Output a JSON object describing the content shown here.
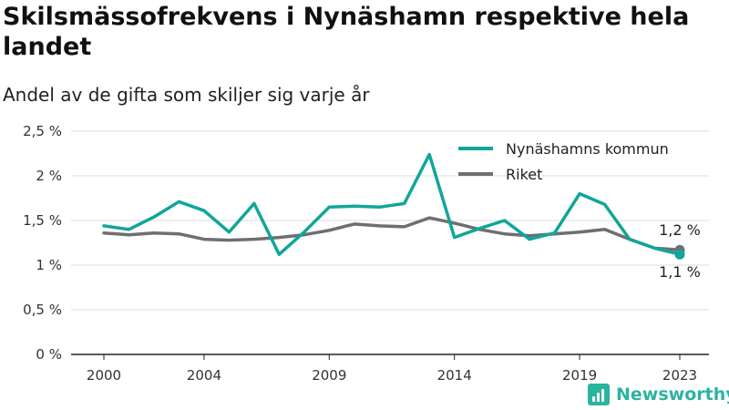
{
  "header": {
    "title": "Skilsmässofrekvens i Nynäshamn respektive hela landet",
    "subtitle": "Andel av de gifta som skiljer sig varje år"
  },
  "brand": {
    "name": "Newsworthy"
  },
  "colors": {
    "nynashamn": "#10a69a",
    "riket": "#6e6e73",
    "grid": "#dcdcdc",
    "axis": "#222222"
  },
  "chart_data": {
    "type": "line",
    "x": [
      2000,
      2001,
      2002,
      2003,
      2004,
      2005,
      2006,
      2007,
      2008,
      2009,
      2010,
      2011,
      2012,
      2013,
      2014,
      2015,
      2016,
      2017,
      2018,
      2019,
      2020,
      2021,
      2022,
      2023
    ],
    "series": [
      {
        "name": "Nynäshamns kommun",
        "color": "#10a69a",
        "values": [
          1.44,
          1.4,
          1.54,
          1.71,
          1.61,
          1.37,
          1.69,
          1.12,
          1.37,
          1.65,
          1.66,
          1.65,
          1.69,
          2.24,
          1.31,
          1.41,
          1.5,
          1.29,
          1.36,
          1.8,
          1.68,
          1.29,
          1.19,
          1.12
        ]
      },
      {
        "name": "Riket",
        "color": "#6e6e73",
        "values": [
          1.36,
          1.34,
          1.36,
          1.35,
          1.29,
          1.28,
          1.29,
          1.31,
          1.34,
          1.39,
          1.46,
          1.44,
          1.43,
          1.53,
          1.47,
          1.4,
          1.35,
          1.33,
          1.35,
          1.37,
          1.4,
          1.29,
          1.19,
          1.17
        ]
      }
    ],
    "ylim": [
      0,
      2.5
    ],
    "yticks": [
      0,
      0.5,
      1,
      1.5,
      2,
      2.5
    ],
    "yticklabels": [
      "0 %",
      "0,5 %",
      "1 %",
      "1,5 %",
      "2 %",
      "2,5 %"
    ],
    "xticks": [
      2000,
      2004,
      2009,
      2014,
      2019,
      2023
    ],
    "xticklabels": [
      "2000",
      "2004",
      "2009",
      "2014",
      "2019",
      "2023"
    ],
    "end_labels": {
      "riket": "1,2 %",
      "nynashamn": "1,1 %"
    },
    "grid": true,
    "legend": "top-right"
  }
}
